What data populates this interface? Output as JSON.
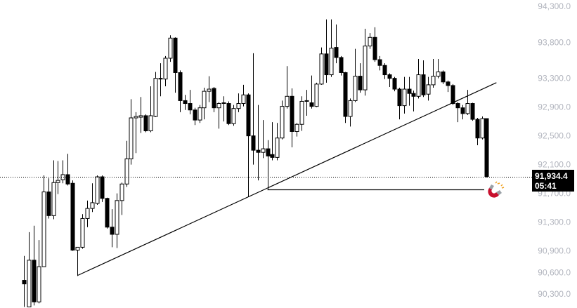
{
  "chart_data": {
    "type": "candlestick",
    "title": "",
    "xlabel": "",
    "ylabel": "",
    "grid": false,
    "xlim": [
      -4.9,
      103.3
    ],
    "ylim": [
      90105,
      94390
    ],
    "y_ticks": [
      "94,300.0",
      "93,800.0",
      "93,300.0",
      "92,900.0",
      "92,500.0",
      "92,100.0",
      "91,700.0",
      "91,300.0",
      "90,900.0",
      "90,600.0",
      "90,300.0"
    ],
    "y_tick_values": [
      94300,
      93800,
      93300,
      92900,
      92500,
      92100,
      91700,
      91300,
      90900,
      90600,
      90300
    ],
    "colors": {
      "up_fill": "#ffffff",
      "down_fill": "#000000",
      "outline": "#000000",
      "axis_text": "#b2b5be",
      "magnet": "#c8102e"
    },
    "candles_ohlc": [
      [
        90490,
        90830,
        90120,
        90440
      ],
      [
        90120,
        91160,
        90120,
        90770
      ],
      [
        90770,
        91250,
        90140,
        90190
      ],
      [
        90190,
        91050,
        90170,
        90680
      ],
      [
        90680,
        91950,
        90680,
        91720
      ],
      [
        91720,
        91910,
        91350,
        91390
      ],
      [
        91390,
        92160,
        91340,
        91850
      ],
      [
        91850,
        92150,
        91690,
        91880
      ],
      [
        91890,
        92160,
        91840,
        91960
      ],
      [
        91960,
        92250,
        91810,
        91830
      ],
      [
        91840,
        91880,
        90900,
        90910
      ],
      [
        90910,
        90950,
        90550,
        90950
      ],
      [
        90950,
        91410,
        90930,
        91350
      ],
      [
        91350,
        91600,
        91230,
        91490
      ],
      [
        91490,
        91840,
        91440,
        91570
      ],
      [
        91560,
        91950,
        91540,
        91930
      ],
      [
        91930,
        91950,
        91580,
        91630
      ],
      [
        91630,
        91640,
        91210,
        91230
      ],
      [
        91230,
        91480,
        90950,
        91130
      ],
      [
        91130,
        91700,
        90940,
        91600
      ],
      [
        91600,
        91850,
        91400,
        91830
      ],
      [
        91830,
        92430,
        91790,
        92180
      ],
      [
        92180,
        93010,
        92100,
        92750
      ],
      [
        92750,
        92830,
        92260,
        92770
      ],
      [
        92760,
        93040,
        92540,
        92780
      ],
      [
        92780,
        92800,
        92550,
        92570
      ],
      [
        92570,
        93190,
        92550,
        92780
      ],
      [
        92770,
        93390,
        92760,
        93300
      ],
      [
        93290,
        93510,
        93050,
        93300
      ],
      [
        93290,
        93610,
        93190,
        93580
      ],
      [
        93580,
        93900,
        93530,
        93860
      ],
      [
        93860,
        93870,
        93100,
        93380
      ],
      [
        93380,
        93410,
        92830,
        92990
      ],
      [
        92990,
        93070,
        92860,
        92950
      ],
      [
        92950,
        93140,
        92800,
        92860
      ],
      [
        92860,
        92890,
        92650,
        92720
      ],
      [
        92720,
        92930,
        92680,
        92890
      ],
      [
        92890,
        93170,
        92730,
        93120
      ],
      [
        93120,
        93330,
        92970,
        93150
      ],
      [
        93160,
        93180,
        92830,
        92890
      ],
      [
        92890,
        92970,
        92600,
        92950
      ],
      [
        92950,
        93050,
        92700,
        92960
      ],
      [
        92950,
        92980,
        92650,
        92670
      ],
      [
        92670,
        92930,
        92640,
        92880
      ],
      [
        92880,
        93090,
        92830,
        92950
      ],
      [
        92950,
        93210,
        92910,
        93070
      ],
      [
        93070,
        93090,
        91650,
        92500
      ],
      [
        92500,
        93650,
        92100,
        92300
      ],
      [
        92300,
        92930,
        91880,
        92270
      ],
      [
        92270,
        92720,
        92190,
        92320
      ],
      [
        92320,
        92440,
        91750,
        92220
      ],
      [
        92240,
        92690,
        92160,
        92200
      ],
      [
        92200,
        92680,
        92160,
        92470
      ],
      [
        92470,
        92990,
        92450,
        92910
      ],
      [
        92910,
        93470,
        92880,
        93050
      ],
      [
        93050,
        93160,
        92340,
        92560
      ],
      [
        92560,
        92680,
        92490,
        92660
      ],
      [
        92660,
        93050,
        92570,
        92980
      ],
      [
        92980,
        93140,
        92780,
        92990
      ],
      [
        92960,
        93340,
        92880,
        92910
      ],
      [
        92910,
        93240,
        92900,
        93220
      ],
      [
        93220,
        93730,
        93210,
        93640
      ],
      [
        93640,
        94120,
        93240,
        93350
      ],
      [
        93350,
        94120,
        93320,
        93720
      ],
      [
        93730,
        94050,
        93510,
        93590
      ],
      [
        93590,
        93610,
        93340,
        93380
      ],
      [
        93380,
        93390,
        92680,
        92770
      ],
      [
        92770,
        93020,
        92630,
        92990
      ],
      [
        92990,
        93710,
        92970,
        93330
      ],
      [
        93330,
        93510,
        93100,
        93140
      ],
      [
        93140,
        93990,
        93060,
        93750
      ],
      [
        93750,
        93930,
        93710,
        93870
      ],
      [
        93870,
        94010,
        93530,
        93560
      ],
      [
        93560,
        93610,
        93410,
        93480
      ],
      [
        93480,
        93510,
        93290,
        93350
      ],
      [
        93350,
        93370,
        93180,
        93300
      ],
      [
        93300,
        93320,
        93120,
        93150
      ],
      [
        93150,
        93170,
        92730,
        92920
      ],
      [
        92920,
        93320,
        92810,
        93150
      ],
      [
        93150,
        93320,
        92920,
        93090
      ],
      [
        93090,
        93130,
        92840,
        93050
      ],
      [
        93050,
        93570,
        93020,
        93350
      ],
      [
        93350,
        93550,
        93040,
        93070
      ],
      [
        93080,
        93320,
        92990,
        93210
      ],
      [
        93210,
        93570,
        93170,
        93330
      ],
      [
        93330,
        93570,
        93300,
        93390
      ],
      [
        93390,
        93410,
        93220,
        93250
      ],
      [
        93250,
        93270,
        93110,
        93200
      ],
      [
        93200,
        93220,
        92930,
        92950
      ],
      [
        92950,
        92970,
        92690,
        92890
      ],
      [
        92890,
        92930,
        92730,
        92810
      ],
      [
        92810,
        93140,
        92790,
        92950
      ],
      [
        92950,
        92960,
        92710,
        92730
      ],
      [
        92730,
        92750,
        92370,
        92470
      ],
      [
        92470,
        92770,
        92450,
        92740
      ],
      [
        92740,
        92740,
        91920,
        91934.4
      ]
    ],
    "drawings": [
      {
        "type": "trendline",
        "from": [
          11.1,
          90560
        ],
        "to": [
          97,
          93240
        ]
      },
      {
        "type": "horizontal-segment",
        "from": [
          50,
          91750
        ],
        "to": [
          94.5,
          91750
        ]
      }
    ],
    "current_price": 91934.4,
    "current_price_label": "91,934.4",
    "countdown": "05:41"
  }
}
